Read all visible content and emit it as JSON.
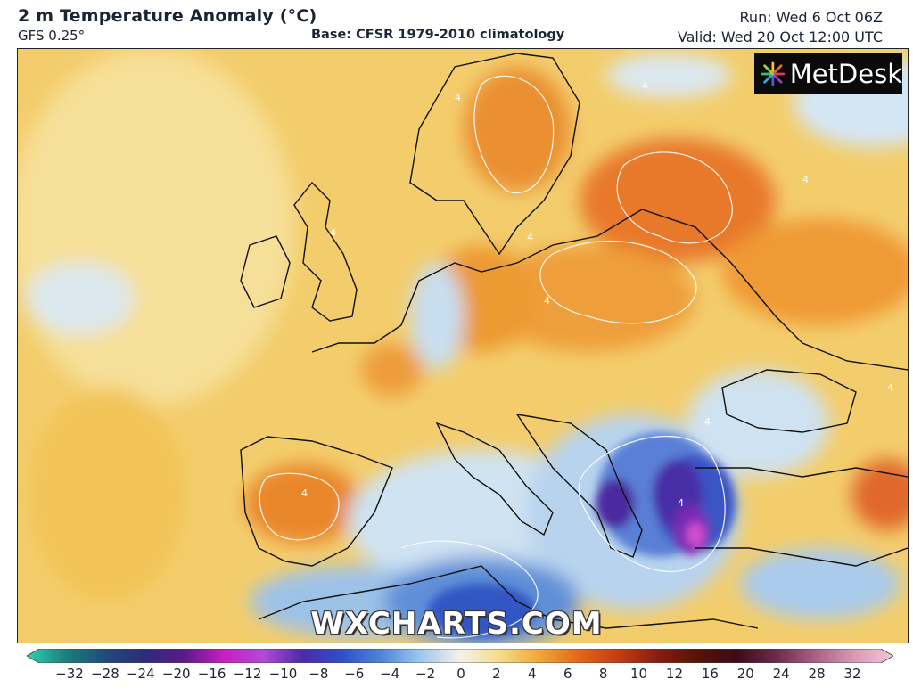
{
  "header": {
    "title": "2 m Temperature Anomaly (°C)",
    "model": "GFS 0.25°",
    "base": "Base: CFSR 1979-2010 climatology",
    "run": "Run: Wed 6 Oct 06Z",
    "valid": "Valid: Wed 20 Oct 12:00 UTC"
  },
  "logo": {
    "text": "MetDesk",
    "icon": "metdesk-burst-icon"
  },
  "watermark": "WXCHARTS.COM",
  "contour_label": "4",
  "colorbar": {
    "ticks": [
      "−32",
      "−28",
      "−24",
      "−20",
      "−16",
      "−12",
      "−10",
      "−8",
      "−6",
      "−4",
      "−2",
      "0",
      "2",
      "4",
      "6",
      "8",
      "10",
      "12",
      "16",
      "20",
      "24",
      "28",
      "32"
    ],
    "colors": [
      "#2bd3b4",
      "#1a7f7d",
      "#204a7a",
      "#2d2c7a",
      "#5a1a8a",
      "#c81ec0",
      "#b14bd6",
      "#4a2aa8",
      "#2f4fc8",
      "#4f86d8",
      "#9ec8ee",
      "#f4f1ea",
      "#f6dc8a",
      "#f0a93a",
      "#e5661a",
      "#c63d12",
      "#8a1d10",
      "#5a1208",
      "#3a0c18",
      "#6c2a4a",
      "#a85f86",
      "#d79ab4",
      "#f3c6d8"
    ]
  },
  "colors": {
    "warm_base": "#f3cd6c",
    "warm_mid": "#eea73a",
    "warm_strong": "#e56f1f",
    "cool_light": "#cfe3f3",
    "cool_mid": "#6aa0dc",
    "cool_strong": "#2a48b8",
    "cool_deep": "#4a1e94",
    "cool_extreme": "#c13ec3"
  }
}
